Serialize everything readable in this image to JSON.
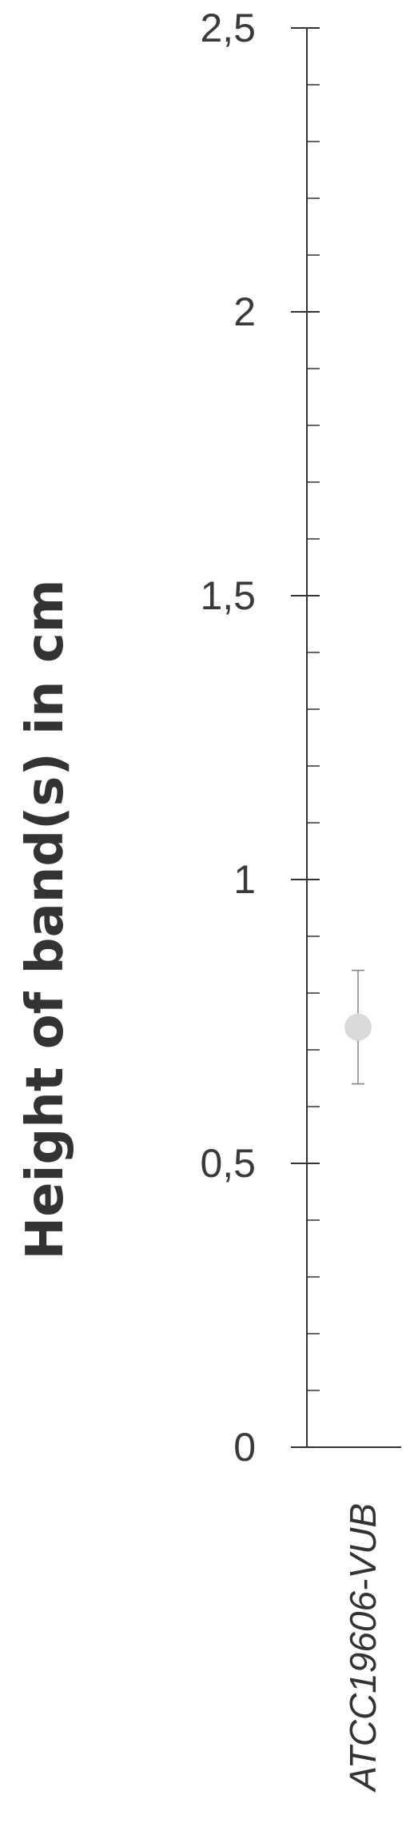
{
  "chart_data": {
    "type": "scatter",
    "ylabel": "Height of band(s) in cm",
    "xlabel": "",
    "categories": [
      "ATCC19606-VUB"
    ],
    "ylim": [
      0,
      2.5
    ],
    "ytick_labels": [
      "0",
      "0,5",
      "1",
      "1,5",
      "2",
      "2,5"
    ],
    "ytick_values": [
      0,
      0.5,
      1,
      1.5,
      2,
      2.5
    ],
    "minor_tick_step": 0.1,
    "grid": false,
    "legend": "none",
    "series": [
      {
        "values": [
          0.74
        ],
        "error_low": [
          0.64
        ],
        "error_high": [
          0.84
        ],
        "color": "#d9d9d9"
      }
    ],
    "colors": {
      "axis": "#333333",
      "errorbar": "#808080",
      "text": "#3a3a3a"
    }
  }
}
